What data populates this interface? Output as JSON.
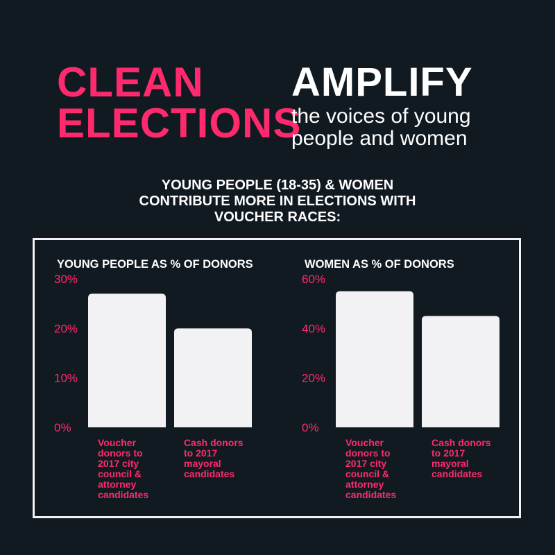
{
  "headline": {
    "left_line1": "CLEAN",
    "left_line2": "ELECTIONS",
    "right_title": "AMPLIFY",
    "right_line1": "the voices of young",
    "right_line2": "people and women"
  },
  "subhead": {
    "line1": "YOUNG PEOPLE (18-35) & WOMEN",
    "line2": "CONTRIBUTE MORE IN ELECTIONS WITH",
    "line3": "VOUCHER RACES:"
  },
  "colors": {
    "background": "#121a21",
    "accent": "#ff2a6d",
    "bar": "#f2f2f4",
    "text": "#ffffff"
  },
  "chart_data": [
    {
      "type": "bar",
      "title": "YOUNG PEOPLE AS % OF DONORS",
      "categories": [
        [
          "Voucher",
          "donors to",
          "2017 city",
          "council &",
          "attorney",
          "candidates"
        ],
        [
          "Cash donors",
          "to 2017",
          "mayoral",
          "candidates"
        ]
      ],
      "values": [
        27,
        20
      ],
      "ylim": [
        0,
        30
      ],
      "yticks": [
        0,
        10,
        20,
        30
      ],
      "ytick_labels": [
        "0%",
        "10%",
        "20%",
        "30%"
      ],
      "grid": false
    },
    {
      "type": "bar",
      "title": "WOMEN AS % OF DONORS",
      "categories": [
        [
          "Voucher",
          "donors to",
          "2017 city",
          "council &",
          "attorney",
          "candidates"
        ],
        [
          "Cash donors",
          "to 2017",
          "mayoral",
          "candidates"
        ]
      ],
      "values": [
        55,
        45
      ],
      "ylim": [
        0,
        60
      ],
      "yticks": [
        0,
        20,
        40,
        60
      ],
      "ytick_labels": [
        "0%",
        "20%",
        "40%",
        "60%"
      ],
      "grid": false
    }
  ]
}
